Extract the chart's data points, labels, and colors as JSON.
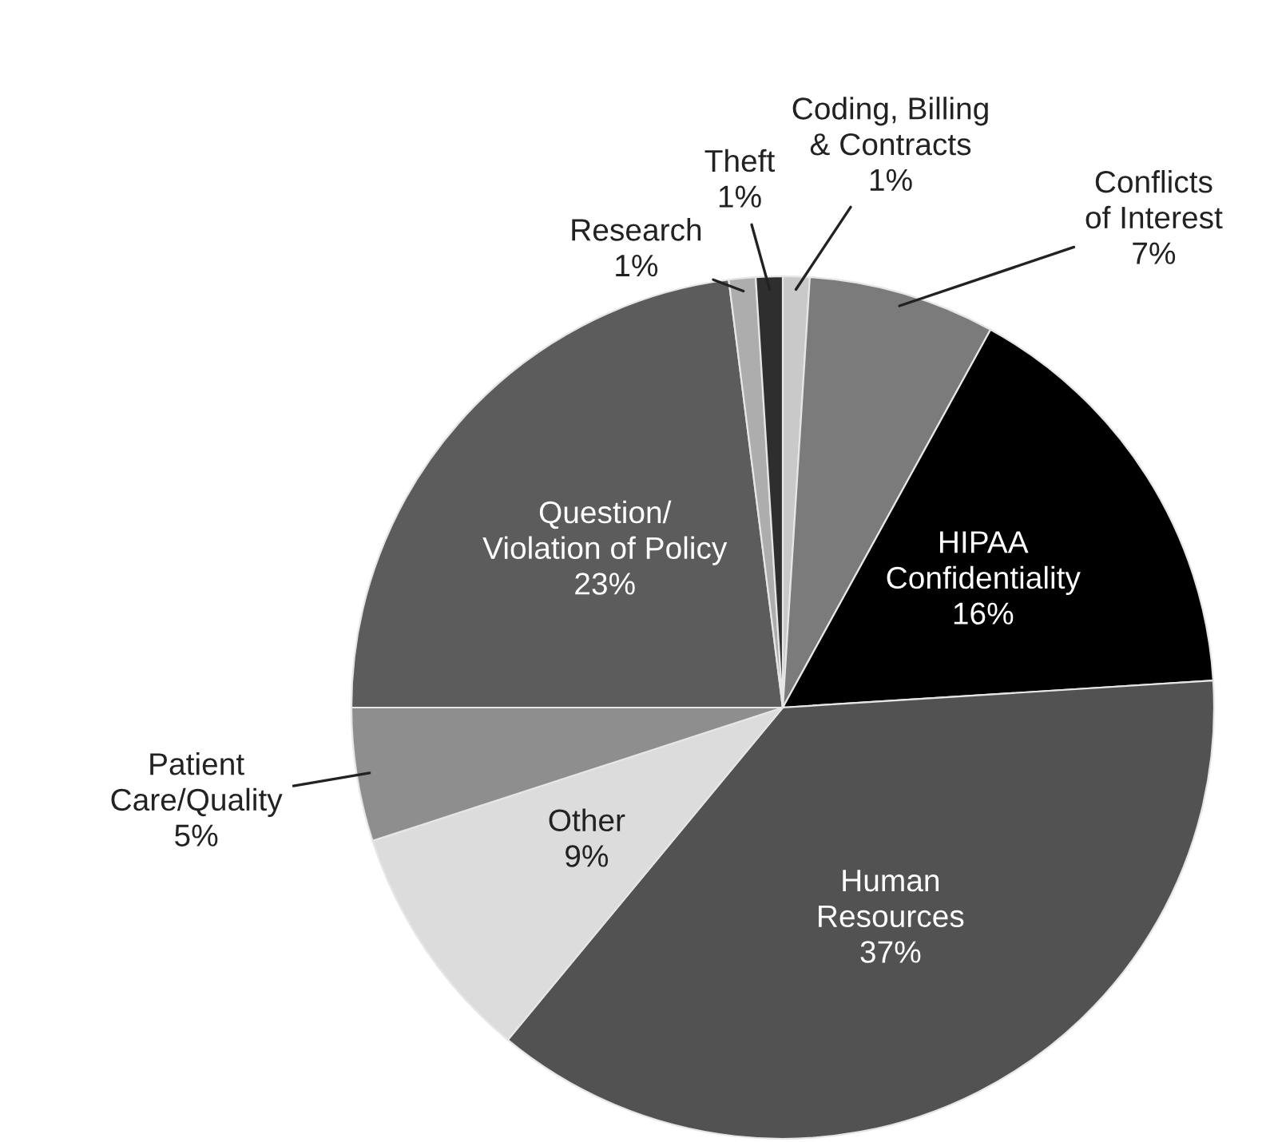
{
  "chart_data": {
    "type": "pie",
    "categories": [
      "Coding, Billing\n& Contracts",
      "Conflicts\nof Interest",
      "HIPAA\nConfidentiality",
      "Human\nResources",
      "Other",
      "Patient\nCare/Quality",
      "Question/\nViolation of Policy",
      "Research",
      "Theft"
    ],
    "values": [
      1,
      7,
      16,
      37,
      9,
      5,
      23,
      1,
      1
    ],
    "value_labels": [
      "1%",
      "7%",
      "16%",
      "37%",
      "9%",
      "5%",
      "23%",
      "1%",
      "1%"
    ],
    "colors": [
      "#c9c9c9",
      "#7b7b7b",
      "#000000",
      "#525252",
      "#dcdcdc",
      "#8e8e8e",
      "#5c5c5c",
      "#adadad",
      "#2e2e2e"
    ]
  }
}
